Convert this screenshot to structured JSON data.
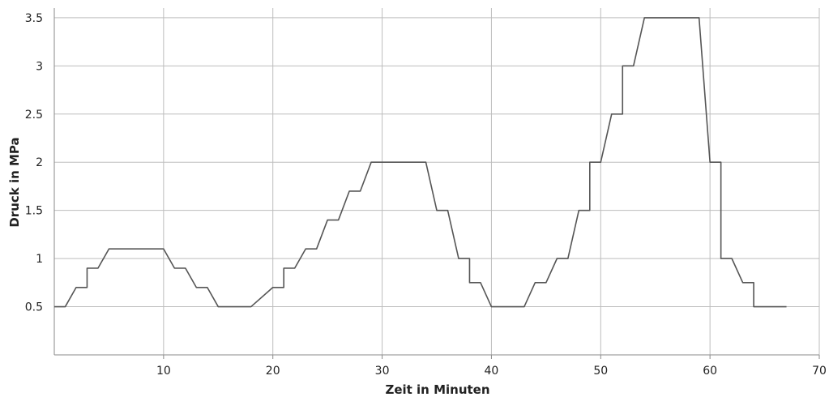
{
  "chart_data": {
    "type": "line",
    "title": "",
    "xlabel": "Zeit in Minuten",
    "ylabel": "Druck in MPa",
    "xlim": [
      0,
      70
    ],
    "ylim": [
      0,
      3.6
    ],
    "xticks": [
      10,
      20,
      30,
      40,
      50,
      60,
      70
    ],
    "yticks": [
      0.5,
      1,
      1.5,
      2,
      2.5,
      3,
      3.5
    ],
    "xtick_labels": [
      "10",
      "20",
      "30",
      "40",
      "50",
      "60",
      "70"
    ],
    "ytick_labels": [
      "0.5",
      "1",
      "1.5",
      "2",
      "2.5",
      "3",
      "3.5"
    ],
    "grid": true,
    "series": [
      {
        "color": "#555555",
        "x": [
          0,
          1,
          2,
          3,
          3,
          4,
          5,
          10,
          11,
          12,
          13,
          14,
          15,
          18,
          20,
          21,
          21,
          22,
          23,
          24,
          25,
          26,
          27,
          28,
          29,
          34,
          35,
          36,
          37,
          38,
          38,
          39,
          40,
          43,
          44,
          45,
          46,
          47,
          48,
          49,
          49,
          50,
          51,
          52,
          52,
          53,
          54,
          59,
          60,
          61,
          61,
          62,
          63,
          64,
          64,
          67
        ],
        "y": [
          0.5,
          0.5,
          0.7,
          0.7,
          0.9,
          0.9,
          1.1,
          1.1,
          0.9,
          0.9,
          0.7,
          0.7,
          0.5,
          0.5,
          0.7,
          0.7,
          0.9,
          0.9,
          1.1,
          1.1,
          1.4,
          1.4,
          1.7,
          1.7,
          2.0,
          2.0,
          1.5,
          1.5,
          1.0,
          1.0,
          0.75,
          0.75,
          0.5,
          0.5,
          0.75,
          0.75,
          1.0,
          1.0,
          1.5,
          1.5,
          2.0,
          2.0,
          2.5,
          2.5,
          3.0,
          3.0,
          3.5,
          3.5,
          2.0,
          2.0,
          1.0,
          1.0,
          0.75,
          0.75,
          0.5,
          0.5
        ]
      }
    ]
  }
}
